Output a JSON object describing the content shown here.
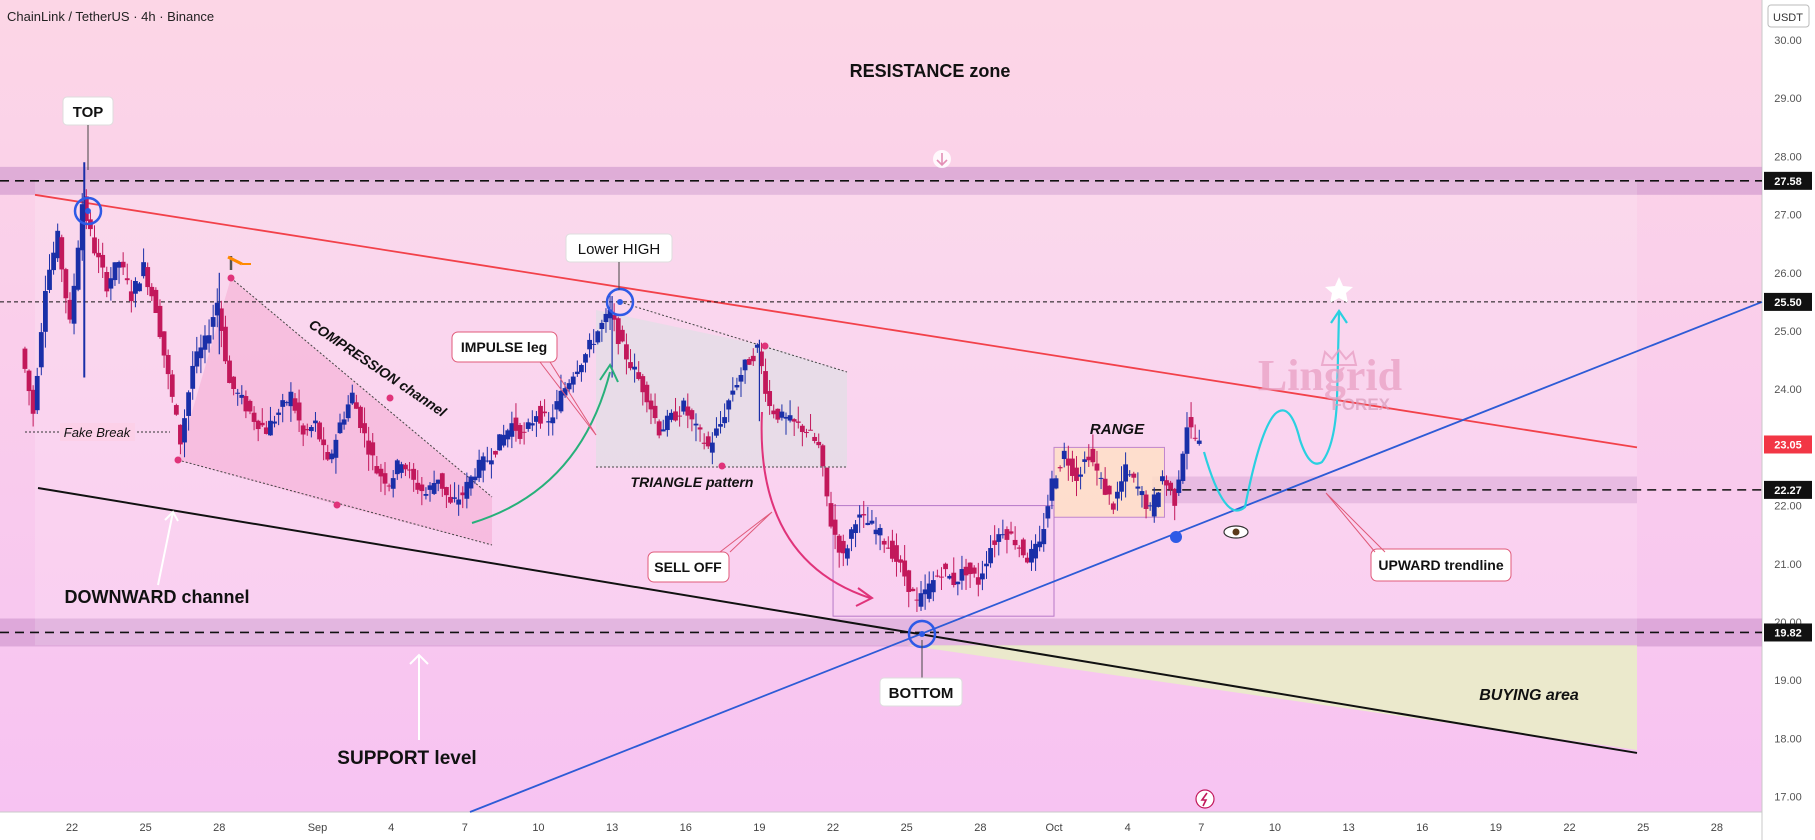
{
  "header": {
    "symbol_line": "ChainLink / TetherUS · 4h · Binance"
  },
  "colors": {
    "bg_top": "#fcd6e6",
    "bg_bottom": "#f7c3f2",
    "zone_fill": "#c98ec9",
    "candle_up": "#1a2fa8",
    "candle_down": "#c2185b",
    "resistance_line": "#f2414a",
    "trend_line": "#2d5bd6",
    "channel_line": "#111111",
    "projection": "#2ad0e0",
    "impulse_arrow": "#27b07a",
    "selloff_arrow": "#e0337a",
    "last_price_badge": "#f23645",
    "accent_marker": "#e0337a"
  },
  "chart_data": {
    "type": "candlestick",
    "title": "ChainLink / TetherUS · 4h · Binance",
    "currency": "USDT",
    "ylim": [
      16.8,
      30.6
    ],
    "y_ticks": [
      17,
      18,
      19,
      20,
      21,
      22,
      23,
      24,
      25,
      26,
      27,
      28,
      29,
      30
    ],
    "y_tick_labels": [
      "17.00",
      "18.00",
      "19.00",
      "20.00",
      "21.00",
      "22.00",
      "23.00",
      "24.00",
      "25.00",
      "26.00",
      "27.00",
      "28.00",
      "29.00",
      "30.00"
    ],
    "x_range": [
      "2024-08-20",
      "2024-10-30"
    ],
    "x_ticks": [
      {
        "date": "2024-08-22",
        "label": "22"
      },
      {
        "date": "2024-08-25",
        "label": "25"
      },
      {
        "date": "2024-08-28",
        "label": "28"
      },
      {
        "date": "2024-09-01",
        "label": "Sep"
      },
      {
        "date": "2024-09-04",
        "label": "4"
      },
      {
        "date": "2024-09-07",
        "label": "7"
      },
      {
        "date": "2024-09-10",
        "label": "10"
      },
      {
        "date": "2024-09-13",
        "label": "13"
      },
      {
        "date": "2024-09-16",
        "label": "16"
      },
      {
        "date": "2024-09-19",
        "label": "19"
      },
      {
        "date": "2024-09-22",
        "label": "22"
      },
      {
        "date": "2024-09-25",
        "label": "25"
      },
      {
        "date": "2024-09-28",
        "label": "28"
      },
      {
        "date": "2024-10-01",
        "label": "Oct"
      },
      {
        "date": "2024-10-04",
        "label": "4"
      },
      {
        "date": "2024-10-07",
        "label": "7"
      },
      {
        "date": "2024-10-10",
        "label": "10"
      },
      {
        "date": "2024-10-13",
        "label": "13"
      },
      {
        "date": "2024-10-16",
        "label": "16"
      },
      {
        "date": "2024-10-19",
        "label": "19"
      },
      {
        "date": "2024-10-22",
        "label": "22"
      },
      {
        "date": "2024-10-25",
        "label": "25"
      },
      {
        "date": "2024-10-28",
        "label": "28"
      }
    ],
    "price_path": [
      [
        "2024-08-20",
        24.7
      ],
      [
        "2024-08-20T12",
        23.6
      ],
      [
        "2024-08-21",
        25.8
      ],
      [
        "2024-08-21T12",
        26.6
      ],
      [
        "2024-08-22",
        25.1
      ],
      [
        "2024-08-22T12",
        27.2
      ],
      [
        "2024-08-23",
        26.4
      ],
      [
        "2024-08-23T12",
        25.8
      ],
      [
        "2024-08-24",
        26.2
      ],
      [
        "2024-08-24T12",
        25.6
      ],
      [
        "2024-08-25",
        26.1
      ],
      [
        "2024-08-25T12",
        25.4
      ],
      [
        "2024-08-26",
        24.2
      ],
      [
        "2024-08-26T12",
        23.1
      ],
      [
        "2024-08-27",
        24.4
      ],
      [
        "2024-08-27T12",
        24.8
      ],
      [
        "2024-08-28",
        25.5
      ],
      [
        "2024-08-28T12",
        24.1
      ],
      [
        "2024-08-29",
        23.8
      ],
      [
        "2024-08-29T12",
        23.5
      ],
      [
        "2024-08-30",
        23.3
      ],
      [
        "2024-08-30T12",
        23.6
      ],
      [
        "2024-08-31",
        23.9
      ],
      [
        "2024-08-31T12",
        23.2
      ],
      [
        "2024-09-01",
        23.4
      ],
      [
        "2024-09-01T12",
        22.7
      ],
      [
        "2024-09-02",
        23.4
      ],
      [
        "2024-09-02T12",
        23.9
      ],
      [
        "2024-09-03",
        23.2
      ],
      [
        "2024-09-03T12",
        22.6
      ],
      [
        "2024-09-04",
        22.4
      ],
      [
        "2024-09-04T12",
        22.8
      ],
      [
        "2024-09-05",
        22.4
      ],
      [
        "2024-09-05T12",
        22.2
      ],
      [
        "2024-09-06",
        22.5
      ],
      [
        "2024-09-06T12",
        22.0
      ],
      [
        "2024-09-07",
        22.2
      ],
      [
        "2024-09-07T12",
        22.6
      ],
      [
        "2024-09-08",
        22.8
      ],
      [
        "2024-09-08T12",
        23.1
      ],
      [
        "2024-09-09",
        23.4
      ],
      [
        "2024-09-09T12",
        23.2
      ],
      [
        "2024-09-10",
        23.6
      ],
      [
        "2024-09-10T12",
        23.4
      ],
      [
        "2024-09-11",
        23.9
      ],
      [
        "2024-09-11T12",
        24.3
      ],
      [
        "2024-09-12",
        24.6
      ],
      [
        "2024-09-12T12",
        25.0
      ],
      [
        "2024-09-13",
        25.3
      ],
      [
        "2024-09-13T12",
        24.7
      ],
      [
        "2024-09-14",
        24.3
      ],
      [
        "2024-09-14T12",
        23.9
      ],
      [
        "2024-09-15",
        23.3
      ],
      [
        "2024-09-15T12",
        23.5
      ],
      [
        "2024-09-16",
        23.7
      ],
      [
        "2024-09-16T12",
        23.3
      ],
      [
        "2024-09-17",
        23.0
      ],
      [
        "2024-09-17T12",
        23.4
      ],
      [
        "2024-09-18",
        24.0
      ],
      [
        "2024-09-18T12",
        24.4
      ],
      [
        "2024-09-19",
        24.7
      ],
      [
        "2024-09-19T12",
        23.7
      ],
      [
        "2024-09-20",
        23.5
      ],
      [
        "2024-09-20T12",
        23.4
      ],
      [
        "2024-09-21",
        23.3
      ],
      [
        "2024-09-21T12",
        23.0
      ],
      [
        "2024-09-22",
        21.7
      ],
      [
        "2024-09-22T12",
        21.1
      ],
      [
        "2024-09-23",
        21.8
      ],
      [
        "2024-09-23T12",
        21.7
      ],
      [
        "2024-09-24",
        21.5
      ],
      [
        "2024-09-24T12",
        21.2
      ],
      [
        "2024-09-25",
        20.8
      ],
      [
        "2024-09-25T12",
        20.3
      ],
      [
        "2024-09-26",
        20.6
      ],
      [
        "2024-09-26T12",
        20.9
      ],
      [
        "2024-09-27",
        20.7
      ],
      [
        "2024-09-27T12",
        20.9
      ],
      [
        "2024-09-28",
        20.7
      ],
      [
        "2024-09-28T12",
        21.3
      ],
      [
        "2024-09-29",
        21.6
      ],
      [
        "2024-09-29T12",
        21.4
      ],
      [
        "2024-09-30",
        21.1
      ],
      [
        "2024-09-30T12",
        21.3
      ],
      [
        "2024-10-01",
        22.4
      ],
      [
        "2024-10-01T12",
        22.9
      ],
      [
        "2024-10-02",
        22.5
      ],
      [
        "2024-10-02T12",
        22.9
      ],
      [
        "2024-10-03",
        22.4
      ],
      [
        "2024-10-03T12",
        22.0
      ],
      [
        "2024-10-04",
        22.6
      ],
      [
        "2024-10-04T12",
        22.3
      ],
      [
        "2024-10-05",
        21.9
      ],
      [
        "2024-10-05T12",
        22.5
      ],
      [
        "2024-10-06",
        22.1
      ],
      [
        "2024-10-06T12",
        23.4
      ],
      [
        "2024-10-07",
        23.05
      ]
    ],
    "horizontal_levels": [
      {
        "price": 27.58,
        "label": "27.58"
      },
      {
        "price": 25.5,
        "label": "25.50"
      },
      {
        "price": 22.27,
        "label": "22.27"
      },
      {
        "price": 19.82,
        "label": "19.82"
      }
    ],
    "last_price": {
      "price": 23.05,
      "label": "23.05"
    },
    "annotations": {
      "resistance_zone": "RESISTANCE zone",
      "top": "TOP",
      "lower_high": "Lower HIGH",
      "impulse_leg": "IMPULSE leg",
      "compression_channel": "COMPRESSION channel",
      "fake_break": "Fake Break",
      "triangle_pattern": "TRIANGLE pattern",
      "sell_off": "SELL OFF",
      "range": "RANGE",
      "upward_trendline": "UPWARD trendline",
      "downward_channel": "DOWNWARD channel",
      "support_level": "SUPPORT level",
      "bottom": "BOTTOM",
      "buying_area": "BUYING area"
    },
    "watermark": {
      "line1": "Lingrid",
      "line2": "FOREX"
    }
  }
}
